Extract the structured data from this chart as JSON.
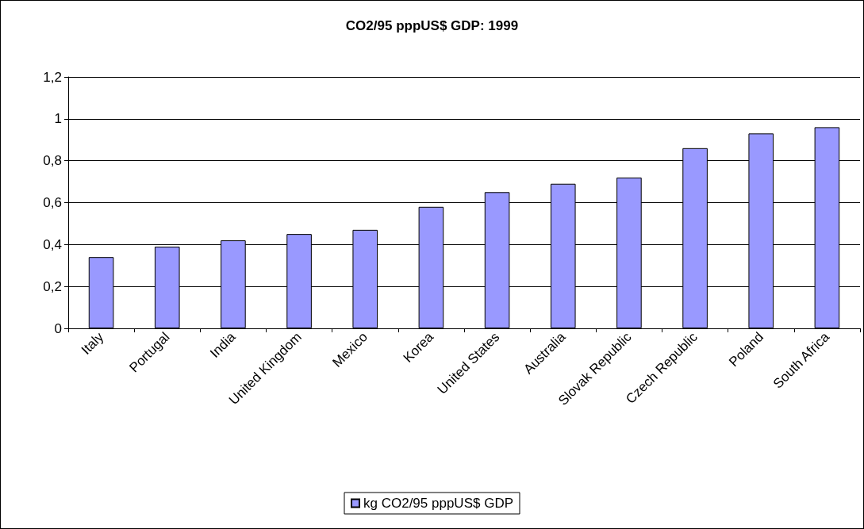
{
  "chart_data": {
    "type": "bar",
    "title": "CO2/95 pppUS$ GDP: 1999",
    "categories": [
      "Italy",
      "Portugal",
      "India",
      "United Kingdom",
      "Mexico",
      "Korea",
      "United States",
      "Australia",
      "Slovak Republic",
      "Czech Republic",
      "Poland",
      "South Africa"
    ],
    "series": [
      {
        "name": "kg CO2/95 pppUS$ GDP",
        "color": "#9999ff",
        "values": [
          0.34,
          0.39,
          0.42,
          0.45,
          0.47,
          0.58,
          0.65,
          0.69,
          0.72,
          0.86,
          0.93,
          0.96
        ]
      }
    ],
    "ylim": [
      0,
      1.2
    ],
    "yticks": [
      0,
      {
        "value": 0.2,
        "label": "0,2"
      },
      {
        "value": 0.4,
        "label": "0,4"
      },
      {
        "value": 0.6,
        "label": "0,6"
      },
      {
        "value": 0.8,
        "label": "0,8"
      },
      1,
      {
        "value": 1.2,
        "label": "1,2"
      }
    ],
    "grid": "y",
    "legend": "bottom"
  }
}
